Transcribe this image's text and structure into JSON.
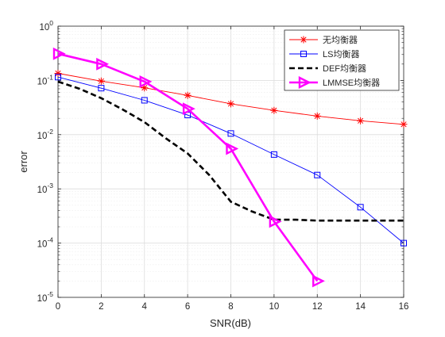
{
  "chart_data": {
    "type": "line",
    "xlabel": "SNR(dB)",
    "ylabel": "error",
    "yscale": "log",
    "xlim": [
      0,
      16
    ],
    "ylim": [
      1e-05,
      1
    ],
    "grid": true,
    "minor_grid": true,
    "legend_position": "top-right",
    "x_ticks": [
      0,
      2,
      4,
      6,
      8,
      10,
      12,
      14,
      16
    ],
    "x_tick_labels": [
      "0",
      "2",
      "4",
      "6",
      "8",
      "10",
      "12",
      "14",
      "16"
    ],
    "y_ticks": [
      {
        "value": 1,
        "base": "10",
        "exp": "0"
      },
      {
        "value": 0.1,
        "base": "10",
        "exp": "-1"
      },
      {
        "value": 0.01,
        "base": "10",
        "exp": "-2"
      },
      {
        "value": 0.001,
        "base": "10",
        "exp": "-3"
      },
      {
        "value": 0.0001,
        "base": "10",
        "exp": "-4"
      },
      {
        "value": 1e-05,
        "base": "10",
        "exp": "-5"
      }
    ],
    "series": [
      {
        "name": "无均衡器",
        "color": "#ff0000",
        "marker": "star",
        "line_style": "solid",
        "line_width": "thin",
        "x": [
          0,
          2,
          4,
          6,
          8,
          10,
          12,
          14,
          16
        ],
        "y": [
          0.135,
          0.097,
          0.073,
          0.053,
          0.037,
          0.028,
          0.022,
          0.018,
          0.0155
        ]
      },
      {
        "name": "LS均衡器",
        "color": "#0000ff",
        "marker": "square",
        "line_style": "solid",
        "line_width": "thin",
        "x": [
          0,
          2,
          4,
          6,
          8,
          10,
          12,
          14,
          16
        ],
        "y": [
          0.115,
          0.072,
          0.043,
          0.023,
          0.0105,
          0.0043,
          0.0018,
          0.00046,
          0.0001
        ]
      },
      {
        "name": "DEF均衡器",
        "color": "#000000",
        "marker": "none",
        "line_style": "dashed",
        "line_width": "thick",
        "x": [
          0,
          1,
          2,
          3,
          4,
          5,
          6,
          7,
          8,
          9,
          10,
          11,
          12,
          13,
          14,
          15,
          16
        ],
        "y": [
          0.095,
          0.07,
          0.047,
          0.029,
          0.017,
          0.0085,
          0.0045,
          0.0018,
          0.00058,
          0.00038,
          0.00027,
          0.00027,
          0.00026,
          0.00026,
          0.00026,
          0.00026,
          0.00026
        ]
      },
      {
        "name": "LMMSE均衡器",
        "color": "#ff00ff",
        "marker": "triangle-right",
        "line_style": "solid",
        "line_width": "thick",
        "x": [
          0,
          2,
          4,
          6,
          8,
          10,
          12
        ],
        "y": [
          0.31,
          0.2,
          0.095,
          0.03,
          0.0055,
          0.00025,
          2e-05
        ]
      }
    ]
  }
}
